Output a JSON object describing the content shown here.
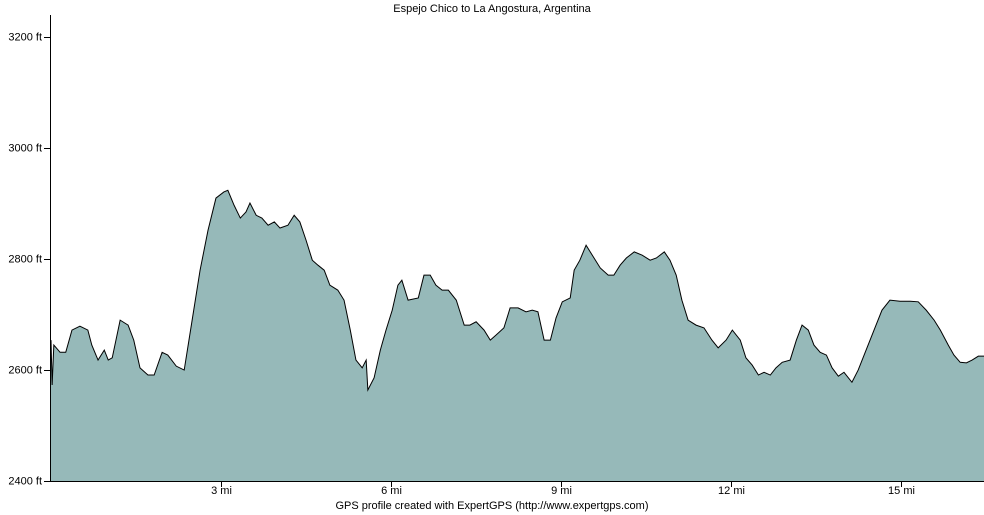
{
  "chart_data": {
    "type": "area",
    "title": "Espejo Chico to La Angostura, Argentina",
    "x_label": "GPS profile created with ExpertGPS (http://www.expertgps.com)",
    "color": "#96b9b9",
    "line_color": "#000000",
    "xlim": [
      0,
      16.46
    ],
    "ylim": [
      2400,
      3240
    ],
    "xticks": [
      {
        "value": 3,
        "label": "3 mi"
      },
      {
        "value": 6,
        "label": "6 mi"
      },
      {
        "value": 9,
        "label": "9 mi"
      },
      {
        "value": 12,
        "label": "12 mi"
      },
      {
        "value": 15,
        "label": "15 mi"
      }
    ],
    "yticks": [
      {
        "value": 2400,
        "label": "2400 ft"
      },
      {
        "value": 2600,
        "label": "2600 ft"
      },
      {
        "value": 2800,
        "label": "2800 ft"
      },
      {
        "value": 3000,
        "label": "3000 ft"
      },
      {
        "value": 3200,
        "label": "3200 ft"
      }
    ],
    "x": [
      0.0,
      0.02,
      0.05,
      0.16,
      0.26,
      0.37,
      0.51,
      0.65,
      0.72,
      0.83,
      0.94,
      1.01,
      1.08,
      1.22,
      1.36,
      1.46,
      1.57,
      1.71,
      1.82,
      1.96,
      2.06,
      2.21,
      2.35,
      2.49,
      2.63,
      2.77,
      2.91,
      3.05,
      3.12,
      3.23,
      3.34,
      3.44,
      3.51,
      3.62,
      3.72,
      3.83,
      3.94,
      4.04,
      4.18,
      4.29,
      4.39,
      4.5,
      4.61,
      4.71,
      4.82,
      4.92,
      5.06,
      5.17,
      5.28,
      5.38,
      5.49,
      5.56,
      5.59,
      5.7,
      5.81,
      5.91,
      6.02,
      6.12,
      6.19,
      6.3,
      6.48,
      6.58,
      6.69,
      6.79,
      6.9,
      7.01,
      7.15,
      7.29,
      7.39,
      7.5,
      7.64,
      7.75,
      7.85,
      7.99,
      8.1,
      8.24,
      8.38,
      8.49,
      8.59,
      8.7,
      8.81,
      8.91,
      9.02,
      9.16,
      9.23,
      9.33,
      9.44,
      9.55,
      9.69,
      9.83,
      9.93,
      10.04,
      10.15,
      10.29,
      10.43,
      10.57,
      10.68,
      10.82,
      10.92,
      11.03,
      11.13,
      11.24,
      11.38,
      11.52,
      11.66,
      11.77,
      11.91,
      12.02,
      12.16,
      12.26,
      12.37,
      12.48,
      12.58,
      12.69,
      12.79,
      12.9,
      13.04,
      13.15,
      13.25,
      13.36,
      13.46,
      13.57,
      13.68,
      13.78,
      13.89,
      13.99,
      14.13,
      14.24,
      14.38,
      14.52,
      14.66,
      14.8,
      14.98,
      15.16,
      15.3,
      15.44,
      15.58,
      15.69,
      15.83,
      15.93,
      16.04,
      16.15,
      16.25,
      16.36,
      16.46
    ],
    "values": [
      2654,
      2573,
      2645,
      2632,
      2632,
      2672,
      2679,
      2672,
      2645,
      2618,
      2636,
      2618,
      2622,
      2690,
      2681,
      2654,
      2604,
      2591,
      2591,
      2632,
      2627,
      2607,
      2600,
      2690,
      2780,
      2852,
      2910,
      2921,
      2924,
      2897,
      2874,
      2885,
      2901,
      2879,
      2874,
      2861,
      2867,
      2856,
      2861,
      2879,
      2867,
      2834,
      2798,
      2789,
      2780,
      2753,
      2744,
      2726,
      2672,
      2618,
      2604,
      2618,
      2564,
      2586,
      2636,
      2672,
      2708,
      2753,
      2762,
      2726,
      2730,
      2771,
      2771,
      2753,
      2744,
      2744,
      2726,
      2681,
      2681,
      2687,
      2672,
      2654,
      2663,
      2676,
      2712,
      2712,
      2705,
      2708,
      2705,
      2654,
      2654,
      2694,
      2723,
      2730,
      2780,
      2798,
      2825,
      2807,
      2784,
      2771,
      2771,
      2789,
      2802,
      2813,
      2807,
      2798,
      2802,
      2813,
      2798,
      2771,
      2726,
      2690,
      2681,
      2676,
      2654,
      2640,
      2654,
      2672,
      2654,
      2622,
      2609,
      2591,
      2596,
      2591,
      2604,
      2614,
      2618,
      2654,
      2681,
      2672,
      2645,
      2632,
      2627,
      2604,
      2589,
      2596,
      2578,
      2600,
      2636,
      2672,
      2708,
      2726,
      2724,
      2724,
      2723,
      2708,
      2690,
      2672,
      2645,
      2627,
      2614,
      2613,
      2618,
      2625,
      2625
    ]
  }
}
